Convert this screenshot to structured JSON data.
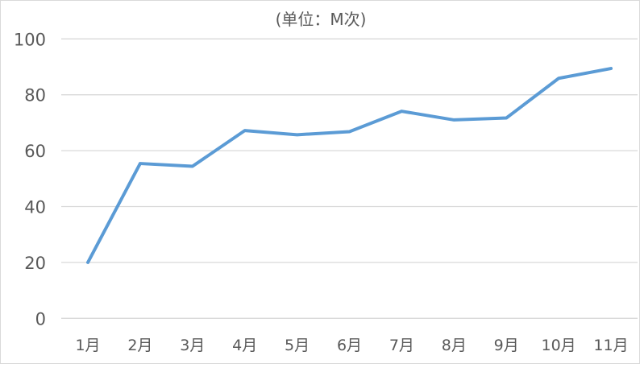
{
  "chart_data": {
    "type": "line",
    "title": "(单位：M次)",
    "xlabel": "",
    "ylabel": "",
    "categories": [
      "1月",
      "2月",
      "3月",
      "4月",
      "5月",
      "6月",
      "7月",
      "8月",
      "9月",
      "10月",
      "11月"
    ],
    "series": [
      {
        "values": [
          20,
          55.4,
          54.4,
          67.2,
          65.7,
          66.8,
          74.1,
          71,
          71.7,
          85.9,
          89.4
        ],
        "color": "#5B9BD5"
      }
    ],
    "ylim": [
      0,
      100
    ],
    "yticks": [
      0,
      20,
      40,
      60,
      80,
      100
    ],
    "grid": true,
    "legend": "none"
  }
}
